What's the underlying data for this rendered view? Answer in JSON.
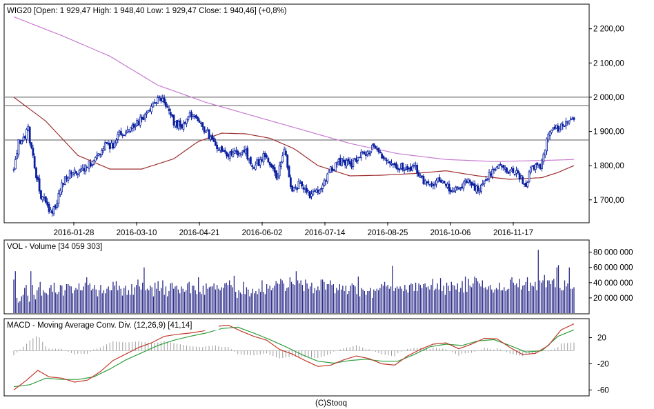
{
  "footer": "(C)Stooq",
  "colors": {
    "frame": "#000000",
    "candle": "#0a1fa0",
    "candle_fill": "#ffffff",
    "ma_long": "#c77bd1",
    "ma_mid": "#9e2f2f",
    "hline": "#555555",
    "volume": "#2a2a8a",
    "macd": "#c0392b",
    "signal": "#2e9e3c",
    "hist": "#9a9a9a"
  },
  "chart_data": [
    {
      "type": "candlestick",
      "title": "WIG20 [Open: 1 929,47  High: 1 948,40  Low: 1 929,47  Close: 1 940,46] (+0,8%)",
      "x_ticks": [
        "2016-01-28",
        "2016-03-10",
        "2016-04-21",
        "2016-06-02",
        "2016-07-14",
        "2016-08-25",
        "2016-10-06",
        "2016-11-17"
      ],
      "y_ticks": [
        1700,
        1800,
        1900,
        2000,
        2100,
        2200
      ],
      "y_tick_labels": [
        "1 700,00",
        "1 800,00",
        "1 900,00",
        "2 000,00",
        "2 100,00",
        "2 200,00"
      ],
      "ylim": [
        1635,
        2270
      ],
      "horizontal_lines": [
        1875,
        1975,
        2000
      ],
      "series_close": [
        [
          0,
          1785
        ],
        [
          3,
          1870
        ],
        [
          6,
          1885
        ],
        [
          9,
          1905
        ],
        [
          11,
          1845
        ],
        [
          14,
          1775
        ],
        [
          17,
          1715
        ],
        [
          20,
          1690
        ],
        [
          23,
          1665
        ],
        [
          26,
          1675
        ],
        [
          30,
          1745
        ],
        [
          34,
          1775
        ],
        [
          38,
          1790
        ],
        [
          42,
          1780
        ],
        [
          46,
          1800
        ],
        [
          50,
          1815
        ],
        [
          54,
          1830
        ],
        [
          58,
          1870
        ],
        [
          62,
          1850
        ],
        [
          65,
          1895
        ],
        [
          69,
          1890
        ],
        [
          73,
          1905
        ],
        [
          77,
          1925
        ],
        [
          81,
          1945
        ],
        [
          85,
          1970
        ],
        [
          89,
          1985
        ],
        [
          92,
          1995
        ],
        [
          95,
          1980
        ],
        [
          98,
          1945
        ],
        [
          101,
          1920
        ],
        [
          105,
          1920
        ],
        [
          109,
          1945
        ],
        [
          113,
          1945
        ],
        [
          117,
          1920
        ],
        [
          121,
          1895
        ],
        [
          125,
          1860
        ],
        [
          129,
          1845
        ],
        [
          133,
          1830
        ],
        [
          137,
          1840
        ],
        [
          141,
          1830
        ],
        [
          145,
          1840
        ],
        [
          149,
          1795
        ],
        [
          153,
          1810
        ],
        [
          157,
          1830
        ],
        [
          160,
          1800
        ],
        [
          163,
          1775
        ],
        [
          165,
          1765
        ],
        [
          167,
          1815
        ],
        [
          169,
          1845
        ],
        [
          171,
          1800
        ],
        [
          173,
          1740
        ],
        [
          175,
          1725
        ],
        [
          178,
          1745
        ],
        [
          182,
          1730
        ],
        [
          186,
          1710
        ],
        [
          190,
          1725
        ],
        [
          194,
          1755
        ],
        [
          198,
          1790
        ],
        [
          202,
          1810
        ],
        [
          206,
          1815
        ],
        [
          210,
          1800
        ],
        [
          214,
          1820
        ],
        [
          218,
          1835
        ],
        [
          222,
          1845
        ],
        [
          226,
          1860
        ],
        [
          230,
          1830
        ],
        [
          234,
          1815
        ],
        [
          238,
          1800
        ],
        [
          242,
          1795
        ],
        [
          246,
          1790
        ],
        [
          250,
          1800
        ],
        [
          254,
          1770
        ],
        [
          258,
          1740
        ],
        [
          262,
          1750
        ],
        [
          266,
          1760
        ],
        [
          270,
          1740
        ],
        [
          274,
          1725
        ],
        [
          278,
          1730
        ],
        [
          282,
          1760
        ],
        [
          286,
          1745
        ],
        [
          290,
          1725
        ],
        [
          294,
          1755
        ],
        [
          298,
          1780
        ],
        [
          302,
          1800
        ],
        [
          306,
          1790
        ],
        [
          310,
          1785
        ],
        [
          314,
          1775
        ],
        [
          318,
          1755
        ],
        [
          320,
          1745
        ],
        [
          323,
          1790
        ],
        [
          326,
          1795
        ],
        [
          329,
          1800
        ],
        [
          332,
          1855
        ],
        [
          335,
          1900
        ],
        [
          338,
          1905
        ],
        [
          341,
          1915
        ],
        [
          344,
          1920
        ],
        [
          347,
          1925
        ],
        [
          350,
          1940
        ]
      ],
      "ma_long": [
        [
          0,
          2235
        ],
        [
          30,
          2180
        ],
        [
          60,
          2120
        ],
        [
          90,
          2035
        ],
        [
          120,
          1985
        ],
        [
          150,
          1945
        ],
        [
          180,
          1905
        ],
        [
          210,
          1865
        ],
        [
          240,
          1835
        ],
        [
          270,
          1818
        ],
        [
          300,
          1812
        ],
        [
          330,
          1815
        ],
        [
          350,
          1818
        ]
      ],
      "ma_mid": [
        [
          0,
          2000
        ],
        [
          20,
          1930
        ],
        [
          40,
          1830
        ],
        [
          60,
          1790
        ],
        [
          80,
          1790
        ],
        [
          100,
          1820
        ],
        [
          115,
          1870
        ],
        [
          130,
          1895
        ],
        [
          145,
          1893
        ],
        [
          160,
          1880
        ],
        [
          175,
          1850
        ],
        [
          190,
          1800
        ],
        [
          210,
          1770
        ],
        [
          230,
          1772
        ],
        [
          250,
          1777
        ],
        [
          270,
          1785
        ],
        [
          290,
          1770
        ],
        [
          310,
          1760
        ],
        [
          330,
          1765
        ],
        [
          340,
          1780
        ],
        [
          350,
          1800
        ]
      ]
    },
    {
      "type": "bar",
      "title": "VOL - Volume [34 059 303]",
      "y_ticks": [
        20000000,
        40000000,
        60000000,
        80000000
      ],
      "y_tick_labels": [
        "20 000 000",
        "40 000 000",
        "60 000 000",
        "80 000 000"
      ],
      "ylim": [
        0,
        95000000
      ],
      "values": [
        44,
        55,
        20,
        14,
        16,
        22,
        24,
        33,
        37,
        23,
        15,
        55,
        37,
        24,
        18,
        30,
        34,
        41,
        23,
        30,
        27,
        26,
        24,
        33,
        37,
        28,
        40,
        27,
        25,
        28,
        37,
        36,
        23,
        30,
        38,
        38,
        36,
        35,
        26,
        30,
        33,
        31,
        39,
        30,
        30,
        35,
        40,
        47,
        37,
        39,
        30,
        32,
        37,
        31,
        22,
        30,
        37,
        26,
        30,
        26,
        32,
        35,
        30,
        30,
        41,
        36,
        42,
        30,
        36,
        32,
        23,
        33,
        36,
        24,
        30,
        24,
        38,
        24,
        34,
        37,
        44,
        35,
        31,
        40,
        60,
        30,
        32,
        30,
        36,
        34,
        22,
        40,
        32,
        42,
        29,
        33,
        43,
        24,
        35,
        22,
        29,
        39,
        40,
        32,
        35,
        36,
        31,
        26,
        35,
        32,
        28,
        30,
        39,
        41,
        26,
        36,
        36,
        30,
        25,
        47,
        28,
        25,
        36,
        24,
        39,
        32,
        34,
        35,
        35,
        39,
        31,
        37,
        32,
        30,
        34,
        33,
        39,
        40,
        37,
        43,
        37,
        34,
        49,
        28,
        20,
        30,
        27,
        25,
        41,
        25,
        34,
        31,
        22,
        26,
        32,
        26,
        29,
        25,
        32,
        28,
        43,
        28,
        25,
        38,
        32,
        36,
        30,
        33,
        36,
        42,
        39,
        38,
        45,
        43,
        39,
        29,
        33,
        34,
        47,
        41,
        38,
        37,
        55,
        43,
        39,
        43,
        37,
        29,
        44,
        39,
        32,
        35,
        40,
        26,
        33,
        30,
        35,
        30,
        44,
        44,
        41,
        31,
        38,
        38,
        43,
        37,
        38,
        26,
        33,
        30,
        38,
        31,
        36,
        29,
        36,
        25,
        29,
        36,
        39,
        37,
        35,
        25,
        48,
        22,
        33,
        31,
        29,
        24,
        29,
        29,
        33,
        20,
        31,
        29,
        32,
        30,
        33,
        38,
        36,
        41,
        35,
        37,
        32,
        35,
        62,
        29,
        33,
        35,
        32,
        35,
        32,
        29,
        37,
        31,
        27,
        37,
        39,
        38,
        29,
        40,
        29,
        39,
        37,
        33,
        38,
        39,
        34,
        35,
        31,
        37,
        45,
        30,
        32,
        39,
        31,
        46,
        29,
        36,
        24,
        40,
        36,
        29,
        41,
        37,
        36,
        31,
        39,
        28,
        33,
        42,
        27,
        48,
        28,
        45,
        36,
        34,
        39,
        48,
        46,
        42,
        39,
        35,
        43,
        33,
        34,
        31,
        35,
        37,
        31,
        27,
        31,
        33,
        31,
        40,
        30,
        30,
        34,
        29,
        31,
        32,
        44,
        47,
        40,
        37,
        39,
        34,
        45,
        31,
        36,
        37,
        41,
        47,
        29,
        40,
        36,
        35,
        41,
        30,
        83,
        43,
        40,
        43,
        50,
        34,
        43,
        43,
        38,
        43,
        45,
        34,
        60,
        63,
        33,
        30,
        30,
        43,
        35,
        39,
        60,
        32,
        32,
        34
      ],
      "unit_multiplier": 1000000
    },
    {
      "type": "line",
      "title": "MACD - Moving Average Conv. Div. (12,26,9) [41,14]",
      "y_ticks": [
        -60,
        -20,
        20
      ],
      "ylim": [
        -68,
        48
      ],
      "macd": [
        [
          0,
          -60
        ],
        [
          8,
          -45
        ],
        [
          15,
          -30
        ],
        [
          22,
          -40
        ],
        [
          30,
          -42
        ],
        [
          38,
          -48
        ],
        [
          46,
          -45
        ],
        [
          54,
          -32
        ],
        [
          62,
          -15
        ],
        [
          70,
          -5
        ],
        [
          78,
          5
        ],
        [
          86,
          12
        ],
        [
          94,
          22
        ],
        [
          102,
          25
        ],
        [
          110,
          27
        ],
        [
          118,
          30
        ],
        [
          126,
          37
        ],
        [
          134,
          39
        ],
        [
          142,
          30
        ],
        [
          150,
          22
        ],
        [
          158,
          16
        ],
        [
          166,
          2
        ],
        [
          174,
          -5
        ],
        [
          182,
          -15
        ],
        [
          190,
          -24
        ],
        [
          198,
          -22
        ],
        [
          206,
          -14
        ],
        [
          214,
          -8
        ],
        [
          222,
          -12
        ],
        [
          230,
          -20
        ],
        [
          238,
          -22
        ],
        [
          246,
          -8
        ],
        [
          254,
          2
        ],
        [
          262,
          10
        ],
        [
          270,
          12
        ],
        [
          278,
          3
        ],
        [
          286,
          10
        ],
        [
          294,
          19
        ],
        [
          302,
          18
        ],
        [
          310,
          5
        ],
        [
          318,
          -6
        ],
        [
          326,
          -4
        ],
        [
          334,
          8
        ],
        [
          342,
          32
        ],
        [
          350,
          41
        ]
      ],
      "signal": [
        [
          0,
          -55
        ],
        [
          10,
          -52
        ],
        [
          20,
          -42
        ],
        [
          30,
          -44
        ],
        [
          40,
          -44
        ],
        [
          50,
          -40
        ],
        [
          60,
          -28
        ],
        [
          70,
          -14
        ],
        [
          80,
          -3
        ],
        [
          90,
          8
        ],
        [
          100,
          16
        ],
        [
          110,
          22
        ],
        [
          120,
          27
        ],
        [
          130,
          34
        ],
        [
          140,
          36
        ],
        [
          150,
          27
        ],
        [
          160,
          17
        ],
        [
          170,
          6
        ],
        [
          180,
          -6
        ],
        [
          190,
          -16
        ],
        [
          200,
          -19
        ],
        [
          210,
          -15
        ],
        [
          220,
          -13
        ],
        [
          230,
          -16
        ],
        [
          240,
          -16
        ],
        [
          250,
          -6
        ],
        [
          260,
          6
        ],
        [
          270,
          10
        ],
        [
          280,
          8
        ],
        [
          290,
          15
        ],
        [
          300,
          17
        ],
        [
          310,
          8
        ],
        [
          320,
          -2
        ],
        [
          330,
          0
        ],
        [
          340,
          22
        ],
        [
          350,
          32
        ]
      ]
    }
  ]
}
